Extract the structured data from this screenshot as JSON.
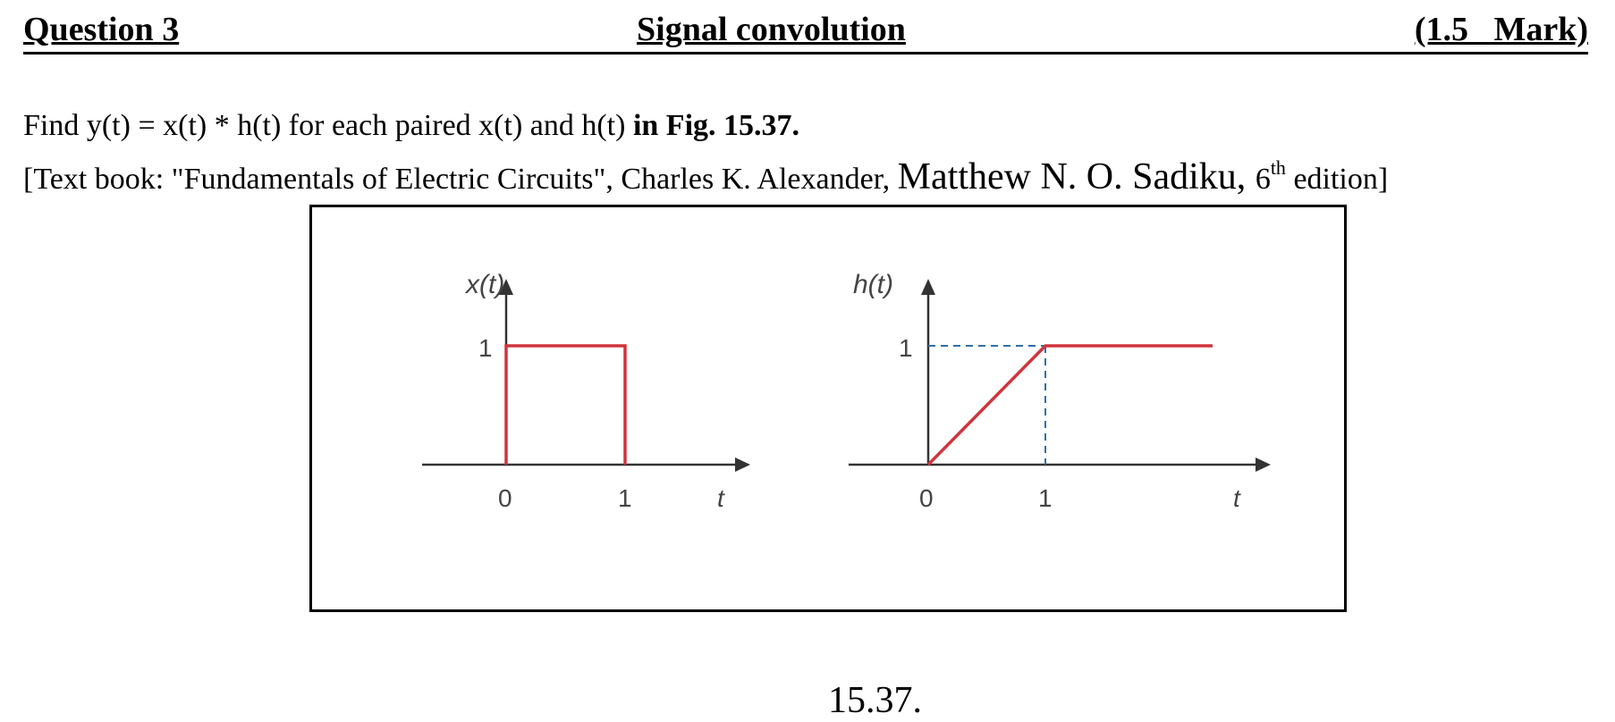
{
  "header": {
    "question": "Question 3",
    "title": "Signal convolution",
    "marks": "(1.5   Mark)"
  },
  "problem": {
    "text": "Find y(t) = x(t) * h(t) for each paired x(t) and h(t) ",
    "text_bold": "in Fig. 15.37.",
    "ref_part1": "[Text book: \"Fundamentals of Electric Circuits\", Charles K. Alexander, ",
    "ref_author2": "Matthew N. O. Sadiku, ",
    "ref_edition_num": "6",
    "ref_edition_sup": "th",
    "ref_end": " edition]"
  },
  "figure": {
    "x_plot": {
      "ylabel": "x(t)",
      "ytick": "1",
      "xticks": [
        "0",
        "1"
      ],
      "xlabel": "t"
    },
    "h_plot": {
      "ylabel": "h(t)",
      "ytick": "1",
      "xticks": [
        "0",
        "1"
      ],
      "xlabel": "t"
    },
    "signal_color": "#d0343c"
  },
  "caption": "15.37."
}
